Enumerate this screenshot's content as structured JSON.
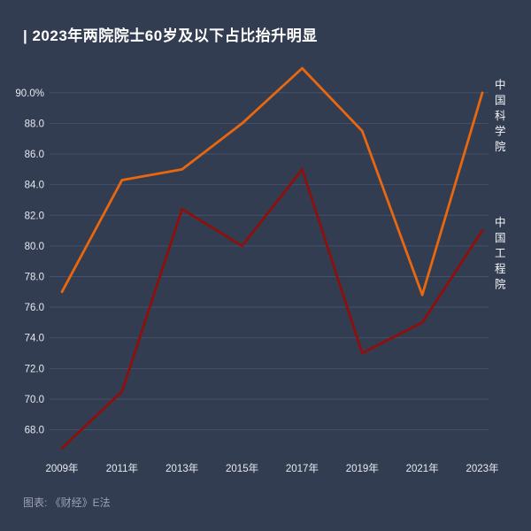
{
  "title": "| 2023年两院院士60岁及以下占比抬升明显",
  "footer": "图表:  《财经》E法",
  "colors": {
    "background": "#333d51",
    "grid": "#46516a",
    "title_text": "#ffffff",
    "axis_text": "#e6e9f0",
    "series_label_text": "#f2f4f8",
    "footer_text": "#9aa2b4"
  },
  "chart_data": {
    "type": "line",
    "categories": [
      "2009年",
      "2011年",
      "2013年",
      "2015年",
      "2017年",
      "2019年",
      "2021年",
      "2023年"
    ],
    "series": [
      {
        "name": "中国科学院",
        "color": "#e8670f",
        "values": [
          77.0,
          84.3,
          85.0,
          88.0,
          91.6,
          87.5,
          76.8,
          90.0
        ]
      },
      {
        "name": "中国工程院",
        "color": "#8e100c",
        "values": [
          66.8,
          70.5,
          82.4,
          80.0,
          85.0,
          73.0,
          75.0,
          81.0
        ]
      }
    ],
    "yticks": [
      68,
      70,
      72,
      74,
      76,
      78,
      80,
      82,
      84,
      86,
      88,
      90
    ],
    "ytick_top_suffix": "%",
    "ylim": [
      66.3,
      92.3
    ],
    "xlabel": "",
    "ylabel": "",
    "grid": true,
    "legend_position": "right-of-line-end"
  }
}
